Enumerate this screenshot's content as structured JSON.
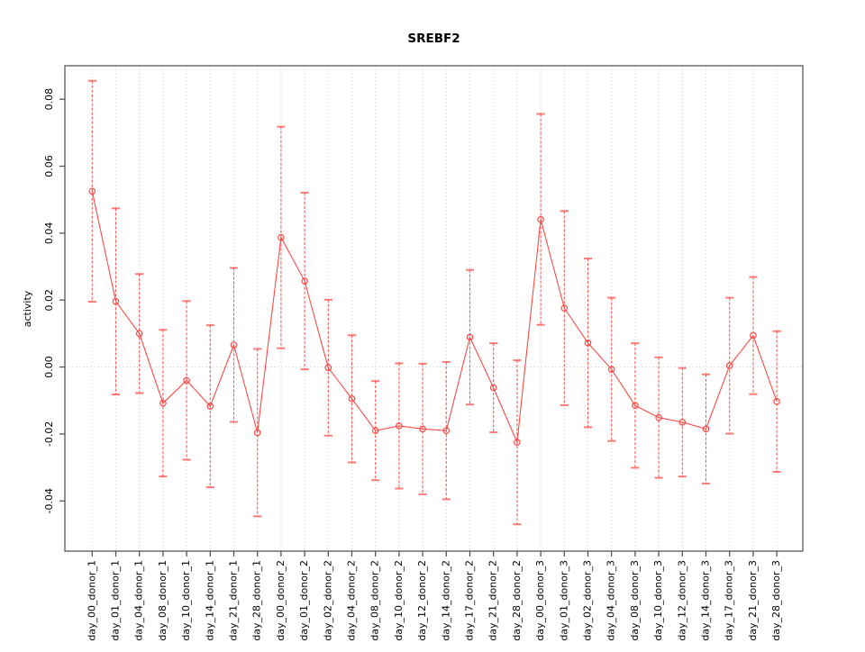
{
  "title": "SREBF2",
  "y_axis": {
    "label": "activity",
    "tick_labels": [
      "-0.04",
      "-0.02",
      "0.00",
      "0.02",
      "0.04",
      "0.06",
      "0.08"
    ]
  },
  "chart_data": {
    "type": "line",
    "title": "SREBF2",
    "xlabel": "",
    "ylabel": "activity",
    "legend": null,
    "grid": "vertical-dotted",
    "zero_line": true,
    "ylim": [
      -0.055,
      0.09
    ],
    "y_ticks": [
      -0.04,
      -0.02,
      0,
      0.02,
      0.04,
      0.06,
      0.08
    ],
    "y_tick_labels": [
      "-0.04",
      "-0.02",
      "0.00",
      "0.02",
      "0.04",
      "0.06",
      "0.08"
    ],
    "categories": [
      "day_00_donor_1",
      "day_01_donor_1",
      "day_04_donor_1",
      "day_08_donor_1",
      "day_10_donor_1",
      "day_14_donor_1",
      "day_21_donor_1",
      "day_28_donor_1",
      "day_00_donor_2",
      "day_01_donor_2",
      "day_02_donor_2",
      "day_04_donor_2",
      "day_08_donor_2",
      "day_10_donor_2",
      "day_12_donor_2",
      "day_14_donor_2",
      "day_17_donor_2",
      "day_21_donor_2",
      "day_28_donor_2",
      "day_00_donor_3",
      "day_01_donor_3",
      "day_02_donor_3",
      "day_04_donor_3",
      "day_08_donor_3",
      "day_10_donor_3",
      "day_12_donor_3",
      "day_14_donor_3",
      "day_17_donor_3",
      "day_21_donor_3",
      "day_28_donor_3"
    ],
    "series": [
      {
        "name": "activity",
        "marker": "open-circle",
        "values": [
          0.0525,
          0.0196,
          0.01,
          -0.0108,
          -0.004,
          -0.0117,
          0.0066,
          -0.0196,
          0.0387,
          0.0257,
          -0.0002,
          -0.0095,
          -0.019,
          -0.0176,
          -0.0185,
          -0.019,
          0.0089,
          -0.0062,
          -0.0225,
          0.0441,
          0.0176,
          0.0072,
          -0.0007,
          -0.0115,
          -0.0151,
          -0.0165,
          -0.0185,
          0.0004,
          0.0094,
          -0.0103
        ],
        "errors": [
          0.033,
          0.0278,
          0.0178,
          0.0219,
          0.0237,
          0.0242,
          0.023,
          0.025,
          0.0331,
          0.0264,
          0.0203,
          0.019,
          0.0148,
          0.0187,
          0.0195,
          0.0205,
          0.0201,
          0.0133,
          0.0245,
          0.0315,
          0.029,
          0.0252,
          0.0214,
          0.0186,
          0.018,
          0.0162,
          0.0163,
          0.0203,
          0.0175,
          0.021
        ]
      }
    ],
    "colors": {
      "series": "#fb4a46",
      "grid": "#d9d9d9",
      "zero_line": "#d9d9d9",
      "box": "#4a4a4a",
      "text": "#000000",
      "background": "#ffffff"
    }
  }
}
